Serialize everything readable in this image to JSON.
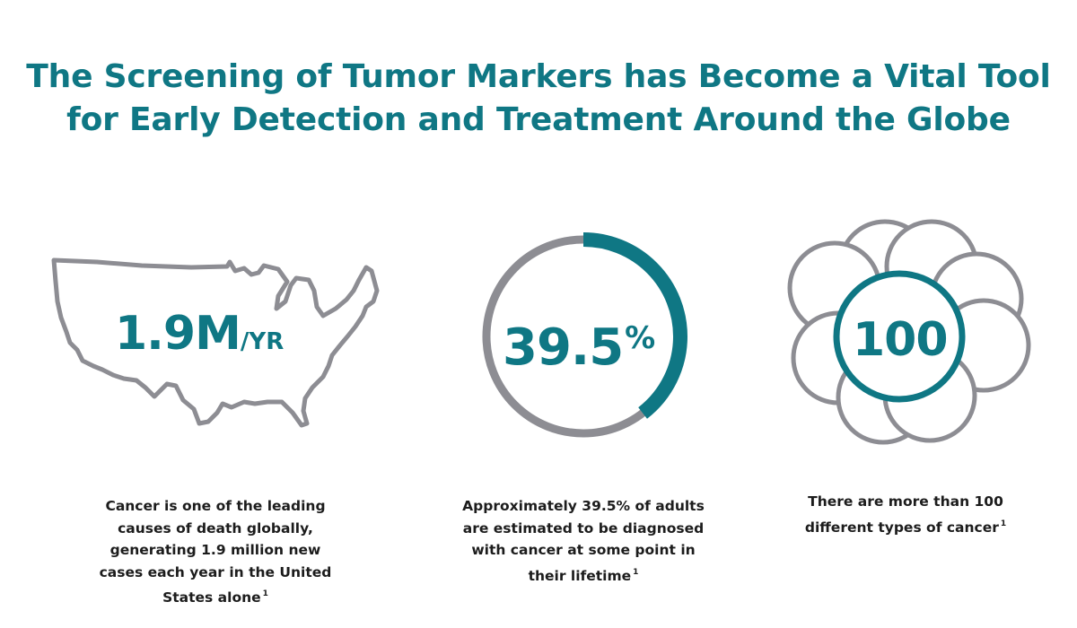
{
  "header": {
    "title_line1": "The Screening of Tumor Markers has Become a Vital Tool",
    "title_line2": "for Early Detection and Treatment Around the Globe"
  },
  "colors": {
    "accent": "#0f7784",
    "outline_gray": "#8d8d93",
    "text_dark": "#1c1c1c"
  },
  "stats": [
    {
      "value": "1.9M",
      "unit": "/YR",
      "graphic": "us-map-icon",
      "caption": "Cancer is one of the leading causes of death globally, generating 1.9 million new cases each year in the United States alone",
      "footnote": "1"
    },
    {
      "value": "39.5",
      "unit": "%",
      "graphic": "progress-ring-icon",
      "ring_fraction": 0.395,
      "caption": "Approximately 39.5% of adults are estimated to be diagnosed with cancer at some point in their lifetime",
      "footnote": "1"
    },
    {
      "value": "100",
      "unit": "",
      "graphic": "cell-cluster-icon",
      "caption": "There are more than 100 different types of cancer",
      "footnote": "1"
    }
  ]
}
